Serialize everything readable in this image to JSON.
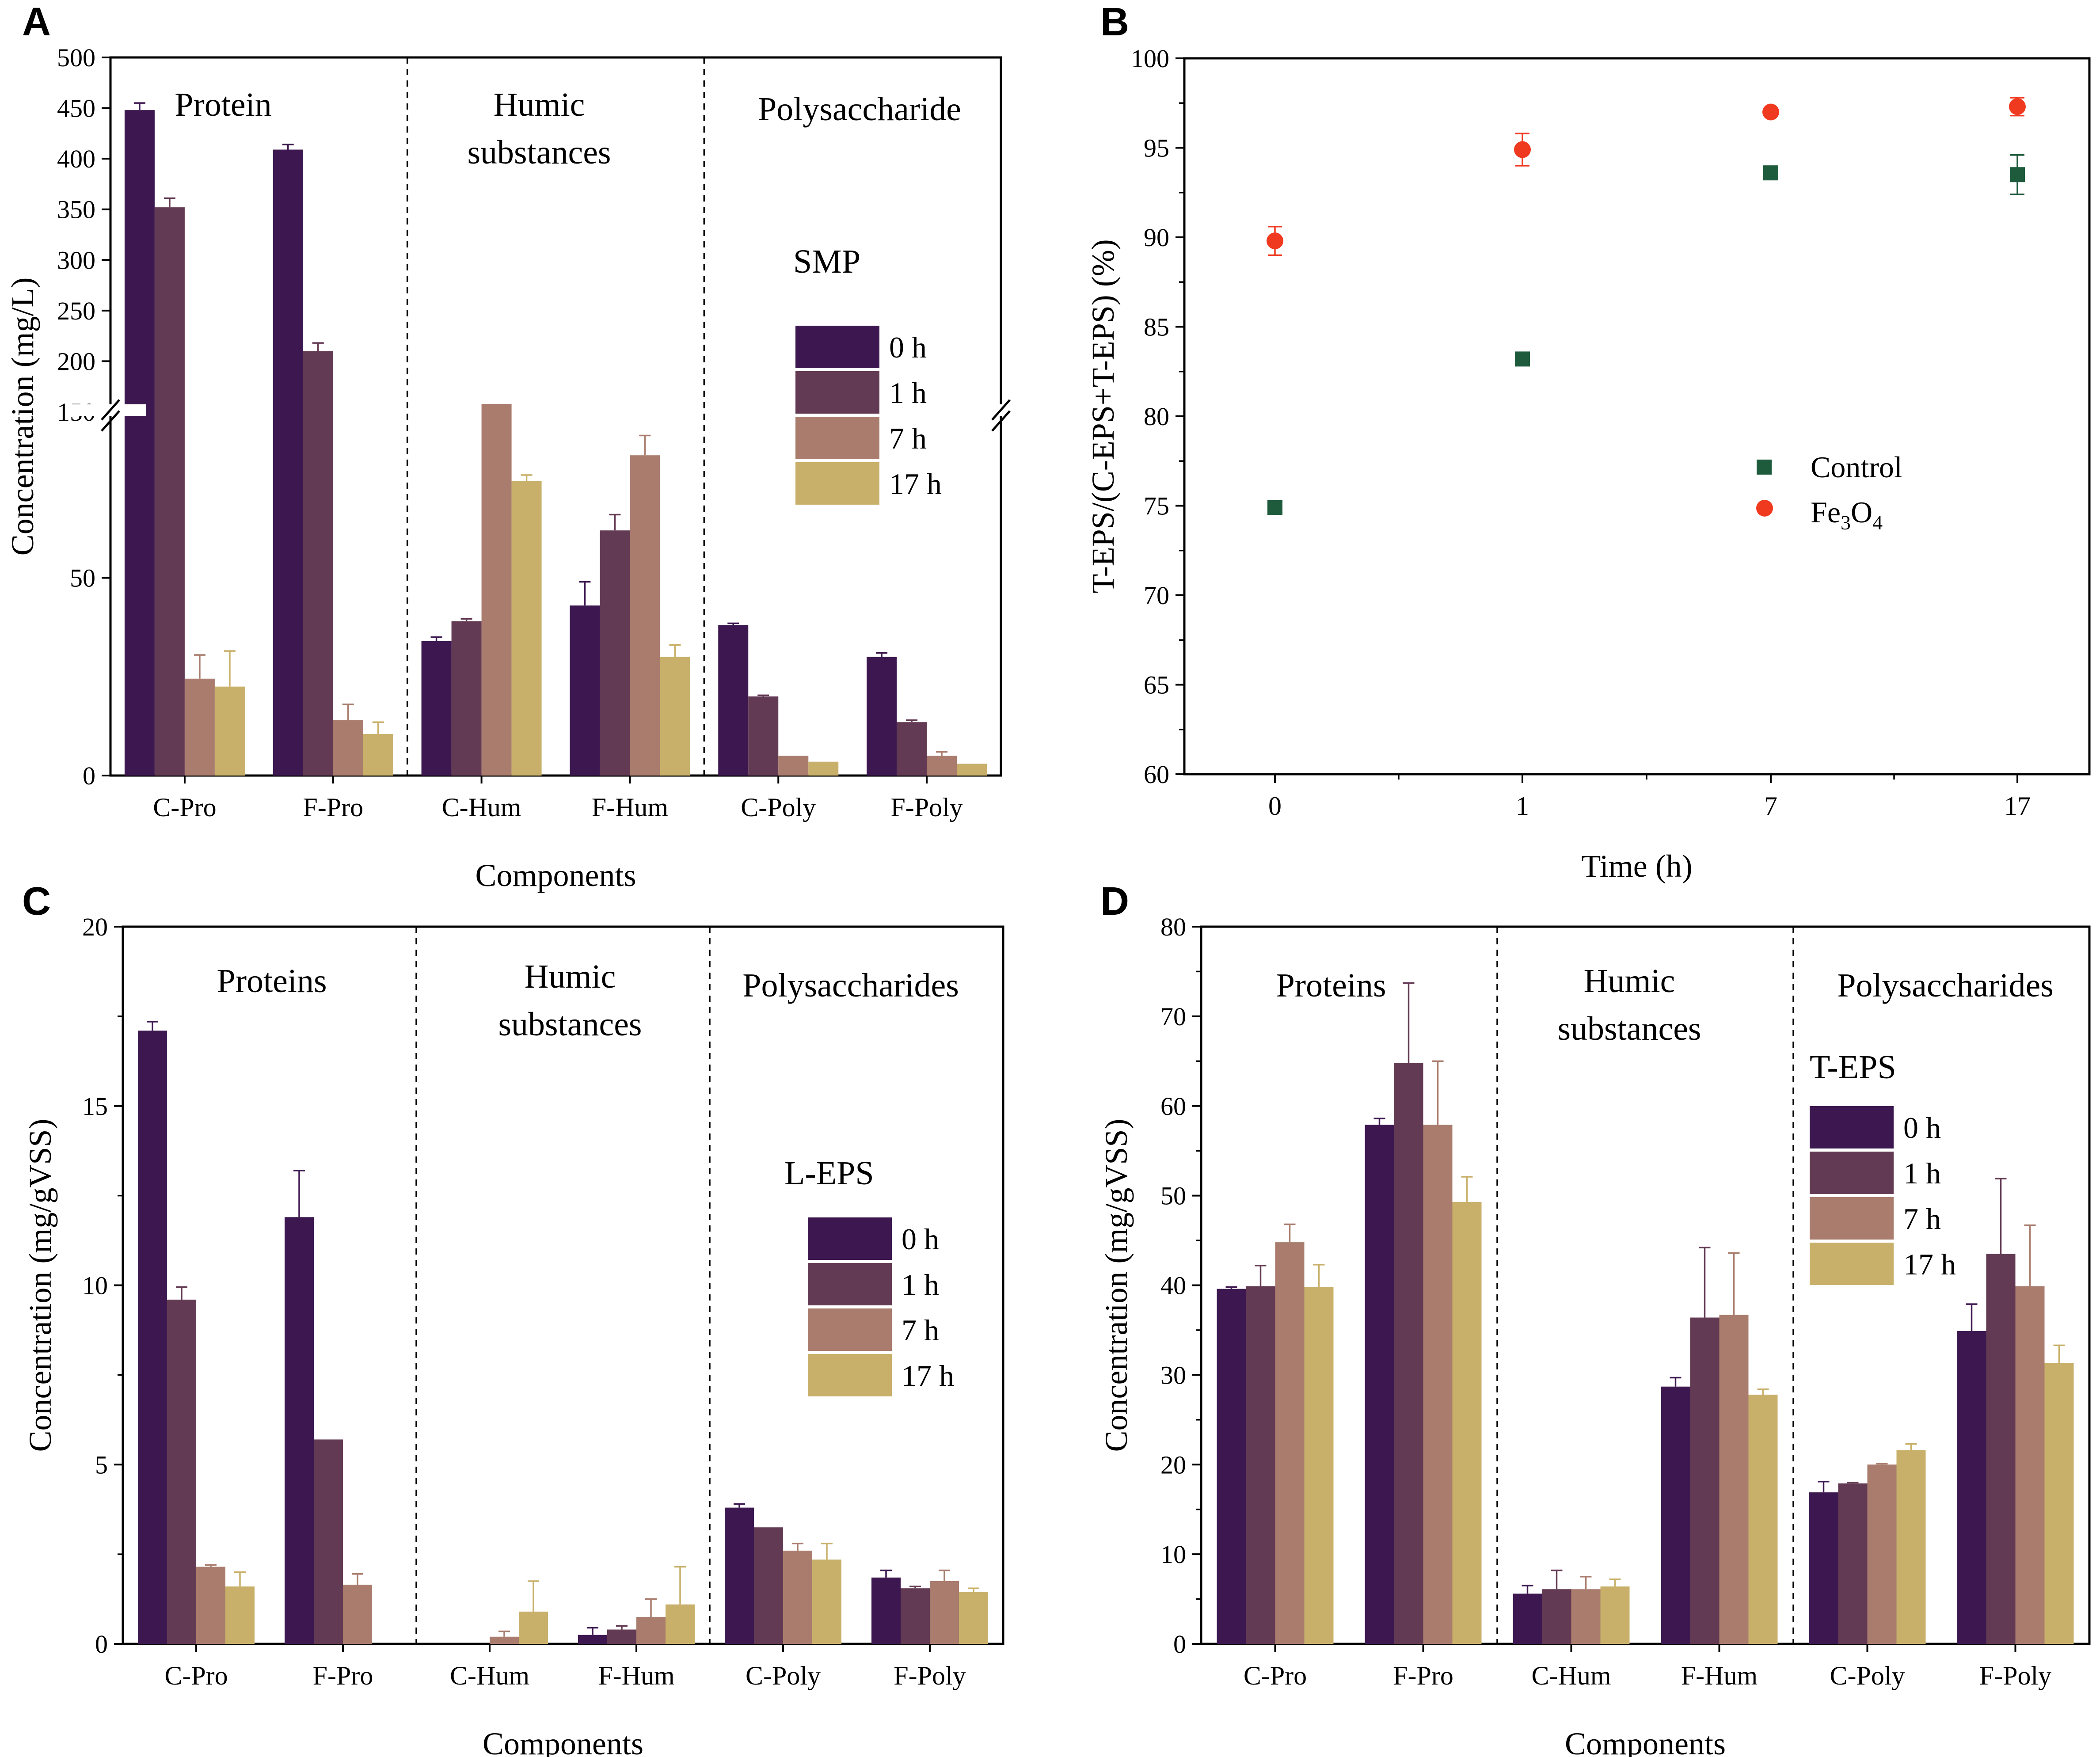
{
  "colors": {
    "h0": "#3d1850",
    "h1": "#633a53",
    "h7": "#a97c6d",
    "h17": "#c8b06a",
    "control": "#1e5a3c",
    "fe3o4": "#f03a20"
  },
  "chart_data": [
    {
      "panel": "A",
      "type": "bar",
      "subtitle": "SMP",
      "categories": [
        "C-Pro",
        "F-Pro",
        "C-Hum",
        "F-Hum",
        "C-Poly",
        "F-Poly"
      ],
      "groups": [
        "Protein",
        "Humic substances",
        "Polysaccharide"
      ],
      "xlabel": "Components",
      "ylabel": "Concentration (mg/L)",
      "ylim_lower": [
        0,
        95
      ],
      "ylim_upper": [
        150,
        500
      ],
      "axis_break": true,
      "lower_ticks": [
        0,
        50
      ],
      "upper_ticks": [
        150,
        200,
        250,
        300,
        350,
        400,
        450,
        500
      ],
      "series": [
        {
          "name": "0 h",
          "values": [
            448,
            409,
            34,
            43,
            38,
            30
          ],
          "errors": [
            7,
            5,
            1,
            6,
            0.5,
            1
          ]
        },
        {
          "name": "1 h",
          "values": [
            352,
            210,
            39,
            62,
            20,
            13.5
          ],
          "errors": [
            9,
            8,
            0.6,
            4,
            0.3,
            0.5
          ]
        },
        {
          "name": "7 h",
          "values": [
            24.5,
            14,
            94,
            81,
            5,
            5
          ],
          "errors": [
            6,
            4,
            5,
            5,
            0,
            1
          ]
        },
        {
          "name": "17 h",
          "values": [
            22.5,
            10.5,
            74.5,
            30,
            3.5,
            3
          ],
          "errors": [
            9,
            3,
            1.5,
            3,
            0,
            0
          ]
        }
      ]
    },
    {
      "panel": "B",
      "type": "scatter",
      "x": [
        "0",
        "1",
        "7",
        "17"
      ],
      "xlabel": "Time (h)",
      "ylabel": "T-EPS/(C-EPS+T-EPS) (%)",
      "ylim": [
        60,
        100
      ],
      "yticks": [
        60,
        65,
        70,
        75,
        80,
        85,
        90,
        95,
        100
      ],
      "series": [
        {
          "name": "Control",
          "marker": "square",
          "values": [
            74.9,
            83.2,
            93.6,
            93.5
          ],
          "errors": [
            0,
            0,
            0,
            1.1
          ]
        },
        {
          "name": "Fe3O4",
          "marker": "circle",
          "values": [
            89.8,
            94.9,
            97.0,
            97.3
          ],
          "errors": [
            0.8,
            0.9,
            0,
            0.5
          ]
        }
      ]
    },
    {
      "panel": "C",
      "type": "bar",
      "subtitle": "L-EPS",
      "categories": [
        "C-Pro",
        "F-Pro",
        "C-Hum",
        "F-Hum",
        "C-Poly",
        "F-Poly"
      ],
      "groups": [
        "Proteins",
        "Humic substances",
        "Polysaccharides"
      ],
      "xlabel": "Components",
      "ylabel": "Concentration (mg/gVSS)",
      "ylim": [
        0,
        20
      ],
      "yticks": [
        0,
        5,
        10,
        15,
        20
      ],
      "series": [
        {
          "name": "0 h",
          "values": [
            17.1,
            11.9,
            0,
            0.25,
            3.8,
            1.85
          ],
          "errors": [
            0.25,
            1.3,
            0,
            0.2,
            0.1,
            0.2
          ]
        },
        {
          "name": "1 h",
          "values": [
            9.6,
            5.7,
            0,
            0.4,
            3.25,
            1.55
          ],
          "errors": [
            0.35,
            0,
            0,
            0.1,
            0,
            0.05
          ]
        },
        {
          "name": "7 h",
          "values": [
            2.15,
            1.65,
            0.2,
            0.75,
            2.6,
            1.75
          ],
          "errors": [
            0.05,
            0.3,
            0.15,
            0.5,
            0.2,
            0.3
          ]
        },
        {
          "name": "17 h",
          "values": [
            1.6,
            0,
            0.9,
            1.1,
            2.35,
            1.45
          ],
          "errors": [
            0.4,
            0,
            0.85,
            1.05,
            0.45,
            0.1
          ]
        }
      ]
    },
    {
      "panel": "D",
      "type": "bar",
      "subtitle": "T-EPS",
      "categories": [
        "C-Pro",
        "F-Pro",
        "C-Hum",
        "F-Hum",
        "C-Poly",
        "F-Poly"
      ],
      "groups": [
        "Proteins",
        "Humic substances",
        "Polysaccharides"
      ],
      "xlabel": "Components",
      "ylabel": "Concentration (mg/gVSS)",
      "ylim": [
        0,
        80
      ],
      "yticks": [
        0,
        10,
        20,
        30,
        40,
        50,
        60,
        70,
        80
      ],
      "series": [
        {
          "name": "0 h",
          "values": [
            39.6,
            57.9,
            5.6,
            28.7,
            16.9,
            34.9
          ],
          "errors": [
            0.2,
            0.7,
            0.9,
            1,
            1.2,
            3
          ]
        },
        {
          "name": "1 h",
          "values": [
            39.9,
            64.8,
            6.1,
            36.4,
            17.9,
            43.5
          ],
          "errors": [
            2.3,
            8.9,
            2.1,
            7.8,
            0.1,
            8.4
          ]
        },
        {
          "name": "7 h",
          "values": [
            44.8,
            57.9,
            6.1,
            36.7,
            20.0,
            39.9
          ],
          "errors": [
            2,
            7.1,
            1.4,
            6.9,
            0.1,
            6.8
          ]
        },
        {
          "name": "17 h",
          "values": [
            39.8,
            49.3,
            6.4,
            27.8,
            21.6,
            31.3
          ],
          "errors": [
            2.5,
            2.8,
            0.8,
            0.6,
            0.7,
            2
          ]
        }
      ]
    }
  ]
}
